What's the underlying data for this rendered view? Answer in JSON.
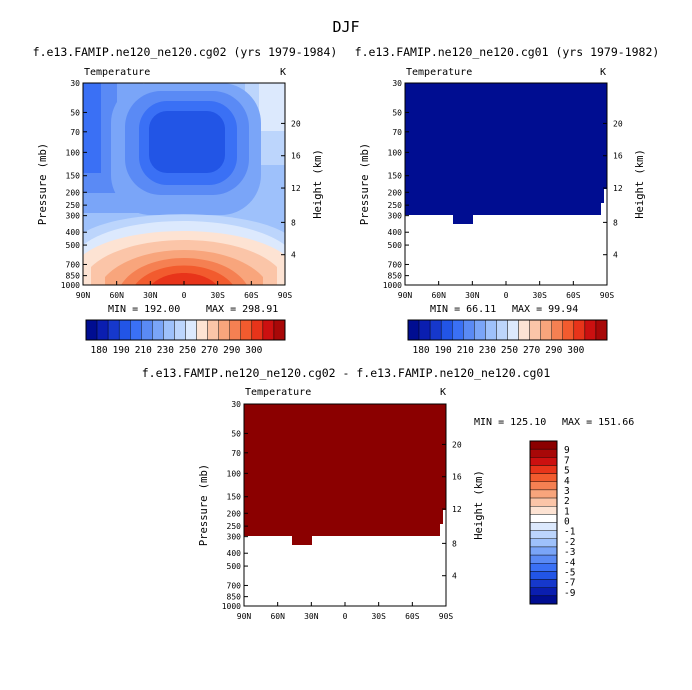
{
  "figure": {
    "main_title": "DJF",
    "colors": {
      "blues": [
        "#000d91",
        "#0a1eb0",
        "#1638cc",
        "#2255e6",
        "#3a70f5",
        "#5a8af5",
        "#7aa5f8",
        "#9ec1fb",
        "#bcd5fc",
        "#dce9fd"
      ],
      "reds": [
        "#fde3d3",
        "#fbc5a8",
        "#f8a57c",
        "#f58052",
        "#f25b2e",
        "#e8341a",
        "#cc1010",
        "#a80808",
        "#8b0000"
      ],
      "mid": "#ffffff",
      "deep_blue": "#000d91",
      "dark_red": "#8b0000"
    }
  },
  "chart_data": [
    {
      "type": "contour",
      "title": "f.e13.FAMIP.ne120_ne120.cg02 (yrs 1979-1984)",
      "variable": "Temperature",
      "units": "K",
      "xlabel": "",
      "ylabel": "Pressure (mb)",
      "ylabel_right": "Height (km)",
      "x_ticks": [
        "90N",
        "60N",
        "30N",
        "0",
        "30S",
        "60S",
        "90S"
      ],
      "y_ticks": [
        "30",
        "50",
        "70",
        "100",
        "150",
        "200",
        "250",
        "300",
        "400",
        "500",
        "700",
        "850",
        "1000"
      ],
      "height_ticks": [
        "20",
        "16",
        "12",
        "8",
        "4"
      ],
      "min_label": "MIN = 192.00",
      "max_label": "MAX = 298.91",
      "min": 192.0,
      "max": 298.91,
      "colorbar_labels": [
        "180",
        "190",
        "210",
        "230",
        "250",
        "270",
        "290",
        "300"
      ]
    },
    {
      "type": "contour",
      "title": "f.e13.FAMIP.ne120_ne120.cg01 (yrs 1979-1982)",
      "variable": "Temperature",
      "units": "K",
      "xlabel": "",
      "ylabel": "Pressure (mb)",
      "ylabel_right": "Height (km)",
      "x_ticks": [
        "90N",
        "60N",
        "30N",
        "0",
        "30S",
        "60S",
        "90S"
      ],
      "y_ticks": [
        "30",
        "50",
        "70",
        "100",
        "150",
        "200",
        "250",
        "300",
        "400",
        "500",
        "700",
        "850",
        "1000"
      ],
      "height_ticks": [
        "20",
        "16",
        "12",
        "8",
        "4"
      ],
      "min_label": "MIN = 66.11",
      "max_label": "MAX = 99.94",
      "min": 66.11,
      "max": 99.94,
      "colorbar_labels": [
        "180",
        "190",
        "210",
        "230",
        "250",
        "270",
        "290",
        "300"
      ]
    },
    {
      "type": "contour",
      "title": "f.e13.FAMIP.ne120_ne120.cg02 - f.e13.FAMIP.ne120_ne120.cg01",
      "variable": "Temperature",
      "units": "K",
      "xlabel": "",
      "ylabel": "Pressure (mb)",
      "ylabel_right": "Height (km)",
      "x_ticks": [
        "90N",
        "60N",
        "30N",
        "0",
        "30S",
        "60S",
        "90S"
      ],
      "y_ticks": [
        "30",
        "50",
        "70",
        "100",
        "150",
        "200",
        "250",
        "300",
        "400",
        "500",
        "700",
        "850",
        "1000"
      ],
      "height_ticks": [
        "20",
        "16",
        "12",
        "8",
        "4"
      ],
      "min_label": "MIN = 125.10",
      "max_label": "MAX = 151.66",
      "min": 125.1,
      "max": 151.66,
      "colorbar_labels": [
        "9",
        "7",
        "5",
        "4",
        "3",
        "2",
        "1",
        "0",
        "-1",
        "-2",
        "-3",
        "-4",
        "-5",
        "-7",
        "-9"
      ]
    }
  ]
}
